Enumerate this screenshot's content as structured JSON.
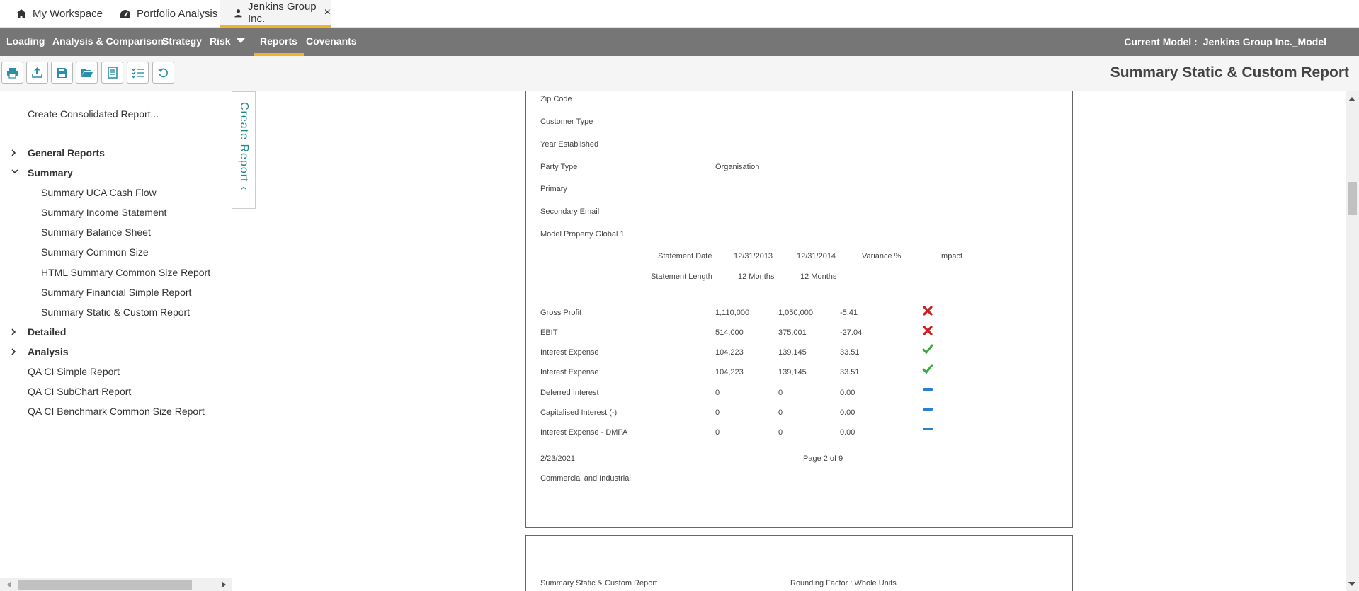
{
  "tabs": [
    {
      "label": "My Workspace",
      "icon": "home-icon"
    },
    {
      "label": "Portfolio Analysis",
      "icon": "dashboard-icon"
    },
    {
      "label": "Jenkins Group Inc.",
      "icon": "user-icon",
      "active": true
    }
  ],
  "nav": {
    "items": [
      "Loading",
      "Analysis & Comparison",
      "Strategy",
      "Risk",
      "Reports",
      "Covenants"
    ],
    "active": "Reports",
    "current_model_label": "Current Model :",
    "current_model_value": "Jenkins Group Inc._Model"
  },
  "toolbar": {
    "buttons": [
      "print-icon",
      "upload-icon",
      "save-icon",
      "folder-open-icon",
      "report-list-icon",
      "checklist-icon",
      "refresh-icon"
    ],
    "page_title": "Summary Static & Custom Report"
  },
  "sidebar": {
    "consolidated_link": "Create Consolidated Report...",
    "create_report_tab": "Create Report",
    "tree": [
      {
        "label": "General Reports",
        "type": "group",
        "expanded": false
      },
      {
        "label": "Summary",
        "type": "group",
        "expanded": true
      },
      {
        "label": "Summary UCA Cash Flow",
        "type": "child"
      },
      {
        "label": "Summary Income Statement",
        "type": "child"
      },
      {
        "label": "Summary Balance Sheet",
        "type": "child"
      },
      {
        "label": "Summary Common Size",
        "type": "child"
      },
      {
        "label": "HTML Summary Common Size Report",
        "type": "child"
      },
      {
        "label": "Summary Financial Simple Report",
        "type": "child"
      },
      {
        "label": "Summary Static & Custom Report",
        "type": "child"
      },
      {
        "label": "Detailed",
        "type": "group",
        "expanded": false
      },
      {
        "label": "Analysis",
        "type": "group",
        "expanded": false
      },
      {
        "label": "QA CI Simple Report",
        "type": "leaf"
      },
      {
        "label": "QA CI SubChart Report",
        "type": "leaf"
      },
      {
        "label": "QA CI Benchmark Common Size Report",
        "type": "leaf"
      }
    ]
  },
  "report": {
    "fields": [
      {
        "label": "Zip Code",
        "value": ""
      },
      {
        "label": "Customer Type",
        "value": ""
      },
      {
        "label": "Year Established",
        "value": ""
      },
      {
        "label": "Party Type",
        "value": "Organisation"
      },
      {
        "label": "Primary",
        "value": ""
      },
      {
        "label": "Secondary Email",
        "value": ""
      },
      {
        "label": "Model Property Global 1",
        "value": ""
      }
    ],
    "header_row1": {
      "label": "Statement Date",
      "col1": "12/31/2013",
      "col2": "12/31/2014",
      "col3": "Variance %",
      "col4": "Impact"
    },
    "header_row2": {
      "label": "Statement Length",
      "col1": "12 Months",
      "col2": "12 Months"
    },
    "rows": [
      {
        "label": "Gross Profit",
        "v1": "1,110,000",
        "v2": "1,050,000",
        "var": "-5.41",
        "impact": "cross-icon"
      },
      {
        "label": "EBIT",
        "v1": "514,000",
        "v2": "375,001",
        "var": "-27.04",
        "impact": "cross-icon"
      },
      {
        "label": "Interest Expense",
        "v1": "104,223",
        "v2": "139,145",
        "var": "33.51",
        "impact": "check-icon"
      },
      {
        "label": "Interest Expense",
        "v1": "104,223",
        "v2": "139,145",
        "var": "33.51",
        "impact": "check-icon"
      },
      {
        "label": "Deferred Interest",
        "v1": "0",
        "v2": "0",
        "var": "0.00",
        "impact": "minus-icon"
      },
      {
        "label": "Capitalised Interest (-)",
        "v1": "0",
        "v2": "0",
        "var": "0.00",
        "impact": "minus-icon"
      },
      {
        "label": "Interest Expense - DMPA",
        "v1": "0",
        "v2": "0",
        "var": "0.00",
        "impact": "minus-icon"
      }
    ],
    "footer_date": "2/23/2021",
    "footer_page": "Page  2 of 9",
    "footer_industry": "Commercial and Industrial",
    "page2_title": "Summary Static & Custom Report",
    "page2_rounding": "Rounding Factor : Whole Units"
  },
  "colors": {
    "nav_bg": "#767676",
    "accent": "#f0b429",
    "teal": "#1a8a8a",
    "cross": "#cc1f1f",
    "check": "#3aa83a",
    "minus": "#2d7fd0"
  }
}
